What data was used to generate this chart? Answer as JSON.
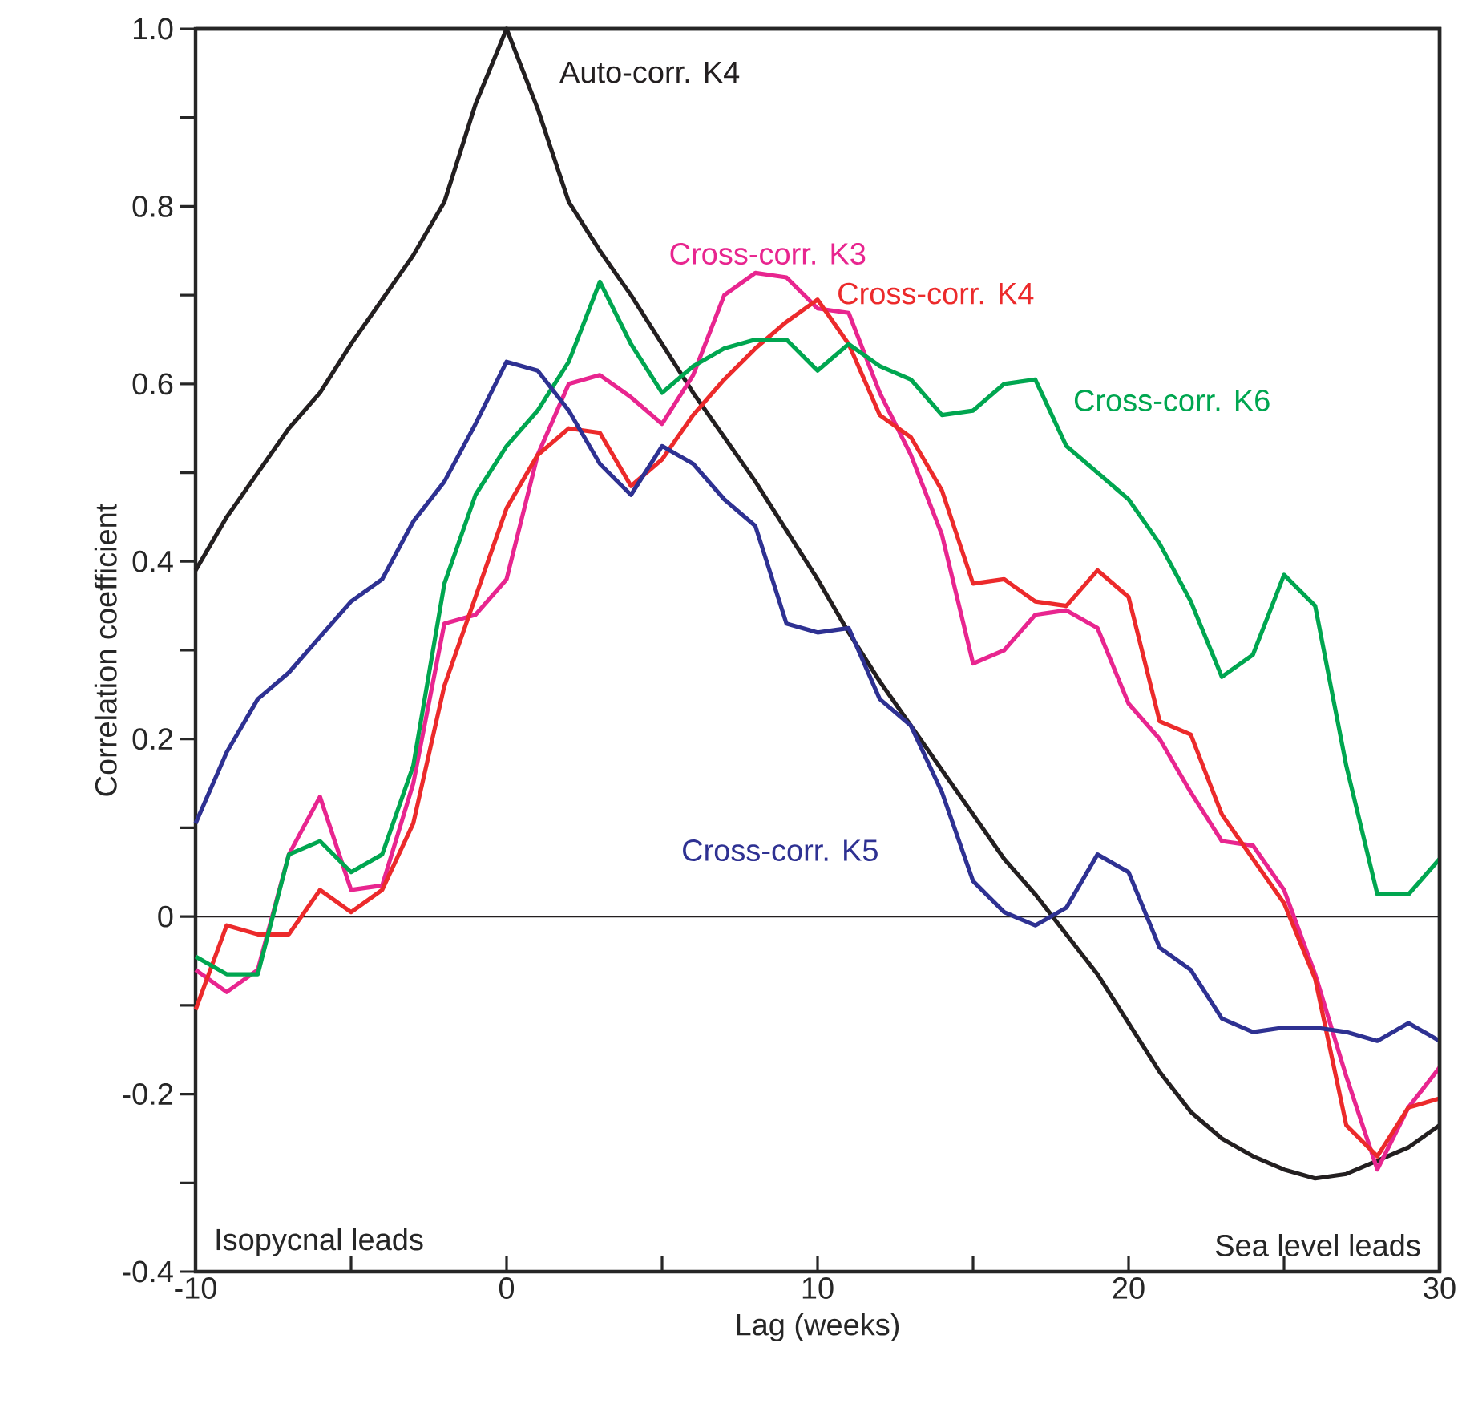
{
  "chart_data": {
    "type": "line",
    "xlabel": "Lag (weeks)",
    "ylabel": "Correlation coefficient",
    "x": [
      -10,
      -9,
      -8,
      -7,
      -6,
      -5,
      -4,
      -3,
      -2,
      -1,
      0,
      1,
      2,
      3,
      4,
      5,
      6,
      7,
      8,
      9,
      10,
      11,
      12,
      13,
      14,
      15,
      16,
      17,
      18,
      19,
      20,
      21,
      22,
      23,
      24,
      25,
      26,
      27,
      28,
      29,
      30
    ],
    "series": [
      {
        "name": "Auto-corr. K4",
        "color": "#231f20",
        "values": [
          0.39,
          0.45,
          0.5,
          0.55,
          0.59,
          0.645,
          0.695,
          0.745,
          0.805,
          0.915,
          1.0,
          0.91,
          0.805,
          0.75,
          0.7,
          0.645,
          0.59,
          0.54,
          0.49,
          0.435,
          0.38,
          0.32,
          0.265,
          0.215,
          0.165,
          0.115,
          0.065,
          0.025,
          -0.02,
          -0.065,
          -0.12,
          -0.175,
          -0.22,
          -0.25,
          -0.27,
          -0.285,
          -0.295,
          -0.29,
          -0.275,
          -0.26,
          -0.235
        ]
      },
      {
        "name": "Cross-corr. K3",
        "color": "#e8258f",
        "values": [
          -0.06,
          -0.085,
          -0.06,
          0.07,
          0.135,
          0.03,
          0.035,
          0.15,
          0.33,
          0.34,
          0.38,
          0.52,
          0.6,
          0.61,
          0.585,
          0.555,
          0.61,
          0.7,
          0.725,
          0.72,
          0.685,
          0.68,
          0.59,
          0.52,
          0.43,
          0.285,
          0.3,
          0.34,
          0.345,
          0.325,
          0.24,
          0.2,
          0.14,
          0.085,
          0.08,
          0.03,
          -0.065,
          -0.18,
          -0.285,
          -0.215,
          -0.17
        ]
      },
      {
        "name": "Cross-corr. K4",
        "color": "#ec2a2b",
        "values": [
          -0.105,
          -0.01,
          -0.02,
          -0.02,
          0.03,
          0.005,
          0.03,
          0.105,
          0.26,
          0.36,
          0.46,
          0.52,
          0.55,
          0.545,
          0.485,
          0.515,
          0.565,
          0.605,
          0.64,
          0.67,
          0.695,
          0.645,
          0.565,
          0.54,
          0.48,
          0.375,
          0.38,
          0.355,
          0.35,
          0.39,
          0.36,
          0.22,
          0.205,
          0.115,
          0.065,
          0.015,
          -0.07,
          -0.235,
          -0.27,
          -0.215,
          -0.205
        ]
      },
      {
        "name": "Cross-corr. K6",
        "color": "#00a650",
        "values": [
          -0.045,
          -0.065,
          -0.065,
          0.07,
          0.085,
          0.05,
          0.07,
          0.17,
          0.375,
          0.475,
          0.53,
          0.57,
          0.625,
          0.715,
          0.645,
          0.59,
          0.62,
          0.64,
          0.65,
          0.65,
          0.615,
          0.645,
          0.62,
          0.605,
          0.565,
          0.57,
          0.6,
          0.605,
          0.53,
          0.5,
          0.47,
          0.42,
          0.355,
          0.27,
          0.295,
          0.385,
          0.35,
          0.17,
          0.025,
          0.025,
          0.065
        ]
      },
      {
        "name": "Cross-corr. K5",
        "color": "#2e3192",
        "values": [
          0.105,
          0.185,
          0.245,
          0.275,
          0.315,
          0.355,
          0.38,
          0.445,
          0.49,
          0.555,
          0.625,
          0.615,
          0.57,
          0.51,
          0.475,
          0.53,
          0.51,
          0.47,
          0.44,
          0.33,
          0.32,
          0.325,
          0.245,
          0.215,
          0.14,
          0.04,
          0.005,
          -0.01,
          0.01,
          0.07,
          0.05,
          -0.035,
          -0.06,
          -0.115,
          -0.13,
          -0.125,
          -0.125,
          -0.13,
          -0.14,
          -0.12,
          -0.14
        ]
      }
    ],
    "xlim": [
      -10,
      30
    ],
    "xticks": [
      -10,
      {
        "value": -5,
        "label": null
      },
      0,
      {
        "value": 5,
        "label": null
      },
      10,
      {
        "value": 15,
        "label": null
      },
      20,
      {
        "value": 25,
        "label": null
      },
      30
    ],
    "ylim": [
      -0.4,
      1.0
    ],
    "yticks": [
      {
        "value": -0.4,
        "label": "-0.4"
      },
      {
        "value": -0.3,
        "label": null
      },
      {
        "value": -0.2,
        "label": "-0.2"
      },
      {
        "value": -0.1,
        "label": null
      },
      {
        "value": 0,
        "label": "0"
      },
      {
        "value": 0.1,
        "label": null
      },
      {
        "value": 0.2,
        "label": "0.2"
      },
      {
        "value": 0.3,
        "label": null
      },
      {
        "value": 0.4,
        "label": "0.4"
      },
      {
        "value": 0.5,
        "label": null
      },
      {
        "value": 0.6,
        "label": "0.6"
      },
      {
        "value": 0.7,
        "label": null
      },
      {
        "value": 0.8,
        "label": "0.8"
      },
      {
        "value": 0.9,
        "label": null
      },
      {
        "value": 1.0,
        "label": "1.0"
      }
    ],
    "ref_lines": [
      {
        "axis": "y",
        "value": 0,
        "color": "#231f20"
      }
    ],
    "annotations": [
      "Isopycnal leads",
      "Sea level leads"
    ],
    "grid": false,
    "legend": false,
    "marker": "none",
    "line_style": "solid"
  }
}
